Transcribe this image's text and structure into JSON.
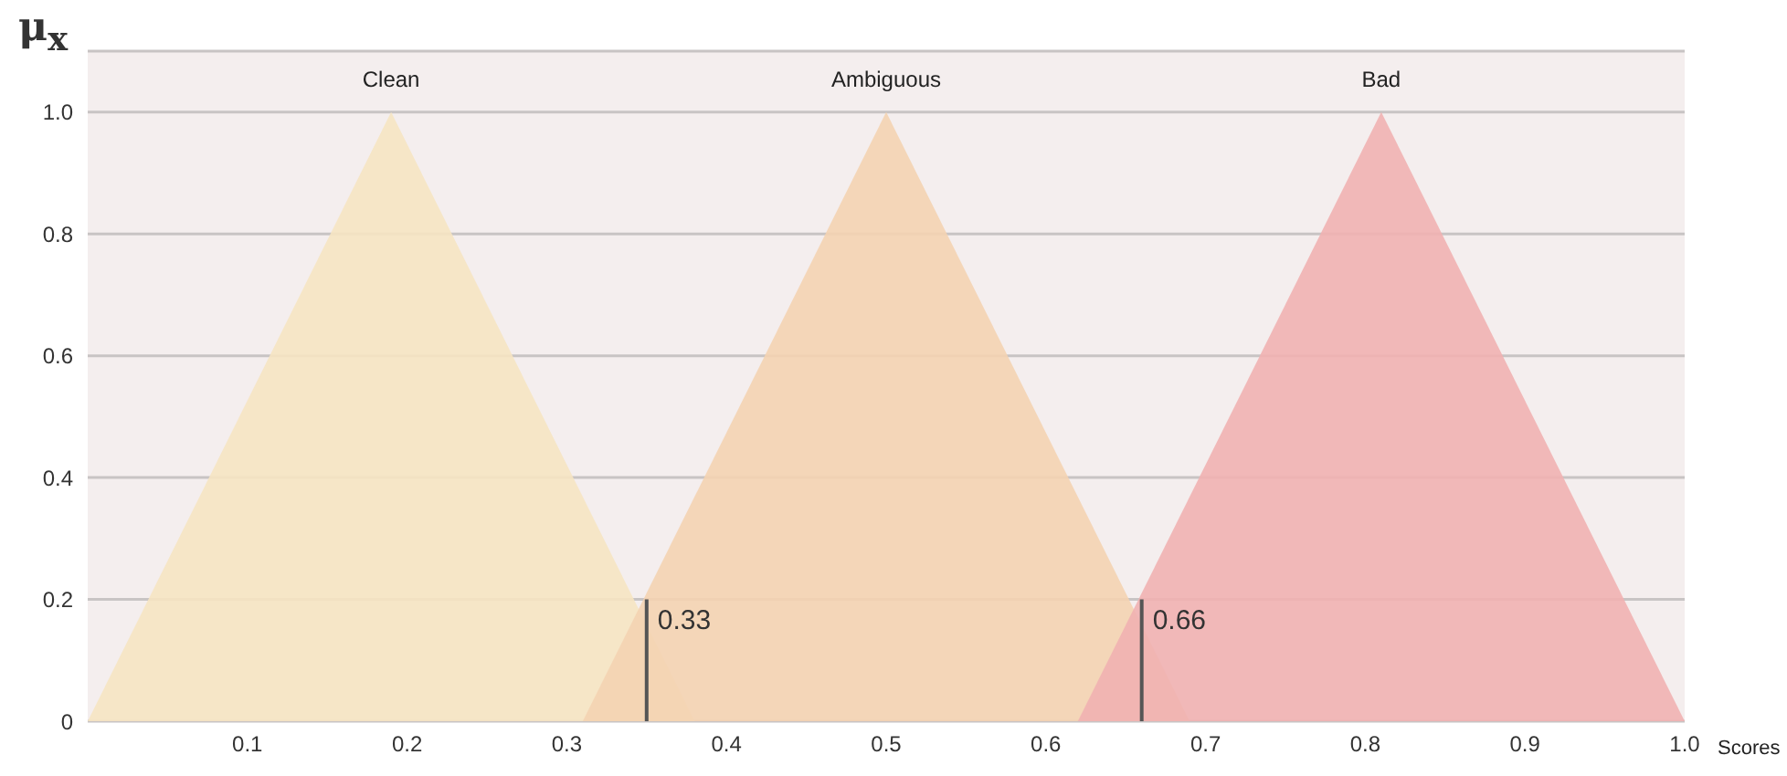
{
  "chart_data": {
    "type": "area",
    "xlabel": "Scores",
    "ylabel": "μ$_{x}$",
    "xlim": [
      0,
      1
    ],
    "xticks": [
      0.1,
      0.2,
      0.3,
      0.4,
      0.5,
      0.6,
      0.7,
      0.8,
      0.9,
      {
        "value": 1,
        "label": "1.0"
      }
    ],
    "ylim": [
      0,
      1.1
    ],
    "yticks": [
      0,
      0.2,
      0.4,
      0.6,
      0.8,
      {
        "value": 1,
        "label": "1.0"
      }
    ],
    "grid": "y",
    "series": [
      {
        "name": "Clean",
        "color": "#f6e4c2",
        "x": [
          0,
          0.19,
          0.38
        ],
        "values": [
          0,
          1,
          0
        ]
      },
      {
        "name": "Ambiguous",
        "color": "#f4d3b1",
        "x": [
          0.31,
          0.5,
          0.69
        ],
        "values": [
          0,
          1,
          0
        ]
      },
      {
        "name": "Bad",
        "color": "#f1b1b1",
        "x": [
          0.62,
          0.81,
          1
        ],
        "values": [
          0,
          1,
          0
        ]
      }
    ],
    "annotations": [
      {
        "text": "0.33",
        "x": 0.35,
        "y": 0.2
      },
      {
        "text": "0.66",
        "x": 0.66,
        "y": 0.2
      }
    ]
  }
}
